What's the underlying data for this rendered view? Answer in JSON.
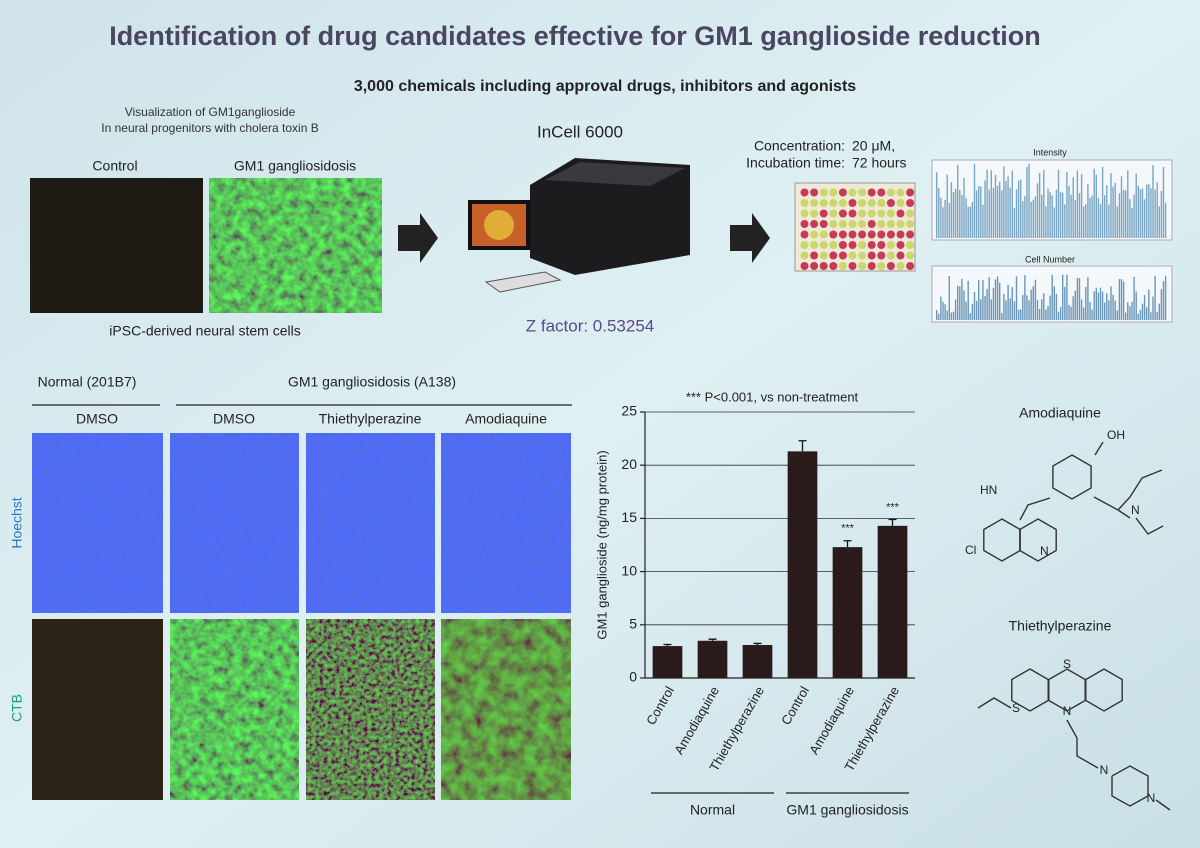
{
  "title": "Identification of drug candidates effective for GM1 ganglioside reduction",
  "subtitle": "3,000 chemicals  including approval drugs, inhibitors and agonists",
  "screening": {
    "caption": [
      "Visualization of GM1ganglioside",
      "In neural progenitors with cholera toxin B"
    ],
    "image_labels": [
      "Control",
      "GM1 gangliosidosis"
    ],
    "footer": "iPSC-derived neural stem cells",
    "instrument": "InCell 6000",
    "z_factor": "Z factor: 0.53254",
    "conditions": [
      {
        "label": "Concentration:",
        "value": "20 μM,"
      },
      {
        "label": "Incubation time:",
        "value": "72 hours"
      }
    ],
    "plot_titles": [
      "Intensity",
      "Cell Number"
    ]
  },
  "imaging": {
    "groups": [
      "Normal (201B7)",
      "GM1 gangliosidosis (A138)"
    ],
    "columns": [
      "DMSO",
      "DMSO",
      "Thiethylperazine",
      "Amodiaquine"
    ],
    "rows": [
      "Hoechst",
      "CTB"
    ]
  },
  "chart_data": {
    "type": "bar",
    "annotation": "*** P<0.001, vs non-treatment",
    "y_label": "GM1 ganglioside (ng/mg protein)",
    "categories": [
      "Control",
      "Amodiaquine",
      "Thiethylperazine",
      "Control",
      "Amodiaquine",
      "Thiethylperazine"
    ],
    "values": [
      3.0,
      3.5,
      3.1,
      21.3,
      12.3,
      14.3
    ],
    "errors": [
      0.15,
      0.15,
      0.15,
      1.0,
      0.6,
      0.6
    ],
    "significance": [
      null,
      null,
      null,
      null,
      "***",
      "***"
    ],
    "groups": [
      {
        "label": "Normal",
        "count": 3
      },
      {
        "label": "GM1 gangliosidosis",
        "count": 3
      }
    ],
    "color": "#2a1a1a",
    "ylim": [
      0,
      25
    ],
    "yticks": [
      0,
      5,
      10,
      15,
      20,
      25
    ],
    "grid": true
  },
  "structures": [
    {
      "name": "Amodiaquine",
      "atoms": [
        "OH",
        "HN",
        "N",
        "Cl",
        "N"
      ]
    },
    {
      "name": "Thiethylperazine",
      "atoms": [
        "S",
        "S",
        "N",
        "N",
        "N"
      ]
    }
  ]
}
